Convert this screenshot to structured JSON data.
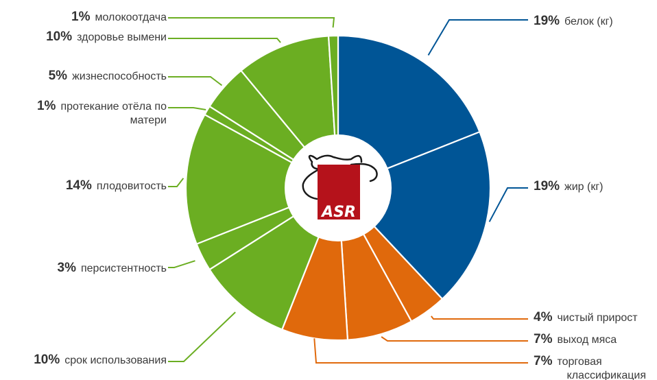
{
  "chart_data": {
    "type": "pie",
    "style": "donut",
    "colors": {
      "blue": "#005596",
      "orange": "#e0690c",
      "green": "#6bae22",
      "logo_red": "#b5121b"
    },
    "slices": [
      {
        "pct_label": "19%",
        "value": 19,
        "lines": [
          "белок (кг)"
        ],
        "color": "#005596",
        "side": "right"
      },
      {
        "pct_label": "19%",
        "value": 19,
        "lines": [
          "жир (кг)"
        ],
        "color": "#005596",
        "side": "right"
      },
      {
        "pct_label": "4%",
        "value": 4,
        "lines": [
          "чистый прирост"
        ],
        "color": "#e0690c",
        "side": "right"
      },
      {
        "pct_label": "7%",
        "value": 7,
        "lines": [
          "выход мяса"
        ],
        "color": "#e0690c",
        "side": "right"
      },
      {
        "pct_label": "7%",
        "value": 7,
        "lines": [
          "торговая",
          "классификация"
        ],
        "color": "#e0690c",
        "side": "right"
      },
      {
        "pct_label": "10%",
        "value": 10,
        "lines": [
          "срок использования"
        ],
        "color": "#6bae22",
        "side": "left"
      },
      {
        "pct_label": "3%",
        "value": 3,
        "lines": [
          "персистентность"
        ],
        "color": "#6bae22",
        "side": "left"
      },
      {
        "pct_label": "14%",
        "value": 14,
        "lines": [
          "плодовитость"
        ],
        "color": "#6bae22",
        "side": "left"
      },
      {
        "pct_label": "1%",
        "value": 1,
        "lines": [
          "протекание отёла по",
          "матери"
        ],
        "color": "#6bae22",
        "side": "left"
      },
      {
        "pct_label": "5%",
        "value": 5,
        "lines": [
          "жизнеспособность"
        ],
        "color": "#6bae22",
        "side": "left"
      },
      {
        "pct_label": "10%",
        "value": 10,
        "lines": [
          "здоровье вымени"
        ],
        "color": "#6bae22",
        "side": "left"
      },
      {
        "pct_label": "1%",
        "value": 1,
        "lines": [
          "молокоотдача"
        ],
        "color": "#6bae22",
        "side": "left"
      }
    ],
    "logo": {
      "text": "ASR"
    }
  }
}
